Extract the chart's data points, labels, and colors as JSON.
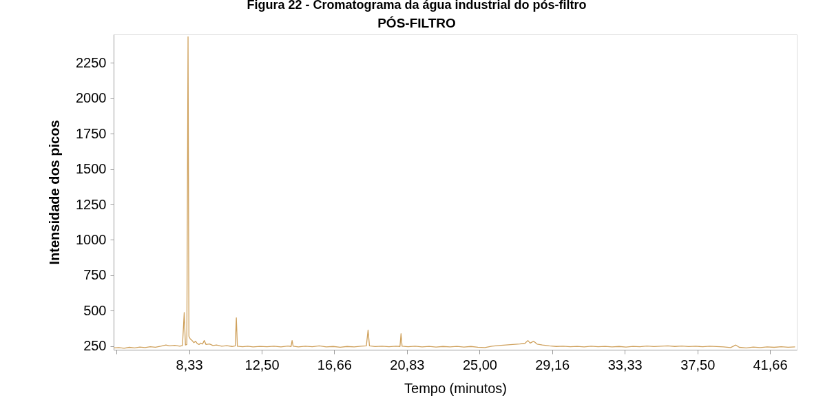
{
  "chart_data": {
    "type": "line",
    "title": "Figura 22 - Cromatograma da água industrial do pós-filtro",
    "subtitle": "PÓS-FILTRO",
    "xlabel": "Tempo (minutos)",
    "ylabel": "Intensidade dos picos",
    "x": [
      4.0,
      4.3,
      4.6,
      4.9,
      5.2,
      5.5,
      5.8,
      6.1,
      6.4,
      6.7,
      7.0,
      7.2,
      7.5,
      7.8,
      7.95,
      8.05,
      8.12,
      8.2,
      8.27,
      8.32,
      8.4,
      8.5,
      8.6,
      8.7,
      8.8,
      8.9,
      9.0,
      9.1,
      9.2,
      9.3,
      9.5,
      9.7,
      9.9,
      10.2,
      10.5,
      10.8,
      10.98,
      11.04,
      11.1,
      11.4,
      11.7,
      12.0,
      12.4,
      12.8,
      13.2,
      13.6,
      14.0,
      14.18,
      14.24,
      14.3,
      14.6,
      15.0,
      15.4,
      15.8,
      16.2,
      16.6,
      17.0,
      17.4,
      17.8,
      18.2,
      18.5,
      18.6,
      18.68,
      19.0,
      19.4,
      19.8,
      20.2,
      20.43,
      20.49,
      20.55,
      20.9,
      21.3,
      21.7,
      22.1,
      22.5,
      22.9,
      23.3,
      23.7,
      24.1,
      24.5,
      24.9,
      25.3,
      25.7,
      26.1,
      26.5,
      26.9,
      27.3,
      27.6,
      27.77,
      27.9,
      28.1,
      28.3,
      28.6,
      29.0,
      29.4,
      29.8,
      30.2,
      30.6,
      31.0,
      31.4,
      31.8,
      32.2,
      32.6,
      33.0,
      33.4,
      33.8,
      34.2,
      34.6,
      35.0,
      35.4,
      35.8,
      36.2,
      36.6,
      37.0,
      37.4,
      37.8,
      38.2,
      38.6,
      39.0,
      39.4,
      39.7,
      39.9,
      40.3,
      40.7,
      41.1,
      41.5,
      41.9,
      42.3,
      42.7,
      43.1
    ],
    "series": [
      {
        "color": "#cfa15c",
        "values": [
          238,
          240,
          235,
          242,
          238,
          244,
          240,
          246,
          243,
          250,
          258,
          252,
          256,
          250,
          255,
          488,
          258,
          262,
          2433,
          320,
          300,
          290,
          275,
          285,
          268,
          262,
          272,
          265,
          290,
          262,
          266,
          255,
          258,
          250,
          254,
          248,
          252,
          450,
          250,
          246,
          250,
          245,
          249,
          246,
          250,
          245,
          251,
          248,
          290,
          250,
          245,
          250,
          246,
          252,
          245,
          248,
          243,
          248,
          245,
          250,
          252,
          364,
          252,
          247,
          250,
          246,
          250,
          248,
          338,
          250,
          246,
          250,
          245,
          249,
          244,
          248,
          245,
          249,
          244,
          248,
          243,
          240,
          250,
          255,
          258,
          262,
          266,
          270,
          290,
          272,
          285,
          265,
          258,
          252,
          248,
          250,
          246,
          249,
          245,
          250,
          246,
          249,
          245,
          248,
          244,
          249,
          246,
          251,
          247,
          250,
          252,
          248,
          251,
          247,
          250,
          246,
          250,
          247,
          245,
          240,
          258,
          242,
          238,
          244,
          240,
          245,
          242,
          246,
          243,
          245
        ]
      }
    ],
    "xlim": [
      4.0,
      43.2
    ],
    "ylim": [
      225,
      2450
    ],
    "xticks": [
      {
        "value": 4.16,
        "label": null
      },
      {
        "value": 8.33,
        "label": "8,33"
      },
      {
        "value": 12.5,
        "label": "12,50"
      },
      {
        "value": 16.66,
        "label": "16,66"
      },
      {
        "value": 20.83,
        "label": "20,83"
      },
      {
        "value": 25,
        "label": "25,00"
      },
      {
        "value": 29.16,
        "label": "29,16"
      },
      {
        "value": 33.33,
        "label": "33,33"
      },
      {
        "value": 37.5,
        "label": "37,50"
      },
      {
        "value": 41.66,
        "label": "41,66"
      }
    ],
    "yticks": [
      250,
      500,
      750,
      1000,
      1250,
      1500,
      1750,
      2000,
      2250
    ],
    "grid": false
  }
}
